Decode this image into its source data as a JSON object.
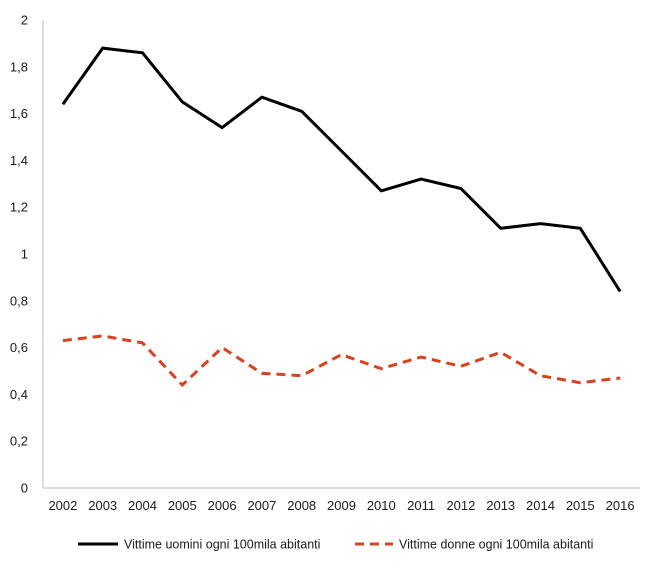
{
  "chart_data": {
    "type": "line",
    "title": "",
    "xlabel": "",
    "ylabel": "",
    "categories": [
      "2002",
      "2003",
      "2004",
      "2005",
      "2006",
      "2007",
      "2008",
      "2009",
      "2010",
      "2011",
      "2012",
      "2013",
      "2014",
      "2015",
      "2016"
    ],
    "ylim": [
      0,
      2
    ],
    "yticks": [
      0,
      0.2,
      0.4,
      0.6,
      0.8,
      1,
      1.2,
      1.4,
      1.6,
      1.8,
      2
    ],
    "ytick_labels": [
      "0",
      "0,2",
      "0,4",
      "0,6",
      "0,8",
      "1",
      "1,2",
      "1,4",
      "1,6",
      "1,8",
      "2"
    ],
    "grid": false,
    "legend_position": "bottom",
    "series": [
      {
        "name": "Vittime uomini ogni 100mila abitanti",
        "color": "#000000",
        "style": "solid",
        "values": [
          1.64,
          1.88,
          1.86,
          1.65,
          1.54,
          1.67,
          1.61,
          1.44,
          1.27,
          1.32,
          1.28,
          1.11,
          1.13,
          1.11,
          0.84
        ]
      },
      {
        "name": "Vittime donne ogni 100mila abitanti",
        "color": "#d8431f",
        "style": "dashed",
        "values": [
          0.63,
          0.65,
          0.62,
          0.44,
          0.6,
          0.49,
          0.48,
          0.57,
          0.51,
          0.56,
          0.52,
          0.58,
          0.48,
          0.45,
          0.47
        ]
      }
    ]
  }
}
